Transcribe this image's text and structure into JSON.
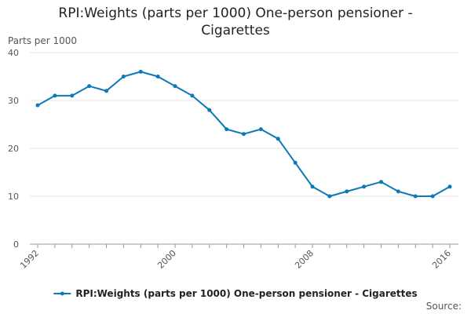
{
  "chart_data": {
    "type": "line",
    "title": "RPI:Weights (parts per 1000) One-person pensioner - Cigarettes",
    "ylabel": "Parts per 1000",
    "xlabel": "",
    "ylim": [
      0,
      40
    ],
    "yticks": [
      0,
      10,
      20,
      30,
      40
    ],
    "xlim": [
      1992,
      2016
    ],
    "xticks": [
      1992,
      2000,
      2008,
      2016
    ],
    "grid": true,
    "legend_position": "bottom",
    "series": [
      {
        "name": "RPI:Weights (parts per 1000) One-person pensioner - Cigarettes",
        "color": "#0d79b6",
        "x": [
          1992,
          1993,
          1994,
          1995,
          1996,
          1997,
          1998,
          1999,
          2000,
          2001,
          2002,
          2003,
          2004,
          2005,
          2006,
          2007,
          2008,
          2009,
          2010,
          2011,
          2012,
          2013,
          2014,
          2015,
          2016
        ],
        "values": [
          29,
          31,
          31,
          33,
          32,
          35,
          36,
          35,
          33,
          31,
          28,
          24,
          23,
          24,
          22,
          17,
          12,
          10,
          11,
          12,
          13,
          11,
          10,
          10,
          12
        ]
      }
    ]
  },
  "source_label": "Source:"
}
